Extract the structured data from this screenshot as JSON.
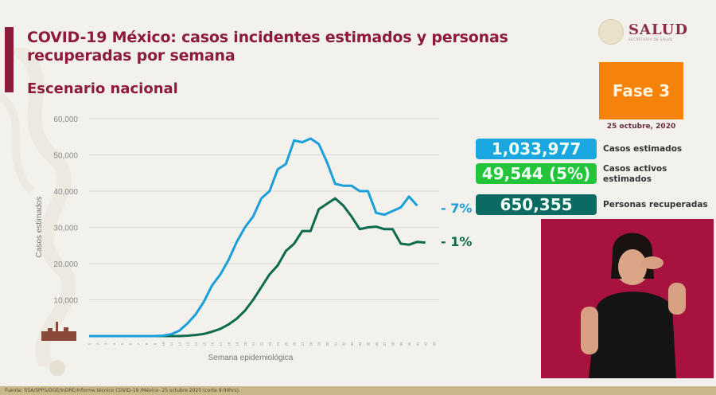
{
  "header": {
    "title": "COVID-19 México: casos incidentes estimados y personas recuperadas por semana",
    "subtitle": "Escenario nacional",
    "logo": {
      "main": "SALUD",
      "sub": "SECRETARÍA DE SALUD",
      "icon": "national-seal-icon"
    }
  },
  "phase": {
    "label": "Fase 3",
    "date": "25 octubre, 2020",
    "color": "#f5820a"
  },
  "stats": [
    {
      "value": "1,033,977",
      "label": "Casos estimados",
      "color": "#1aa7e0"
    },
    {
      "value": "49,544 (5%)",
      "label": "Casos activos estimados",
      "color": "#22c43a"
    },
    {
      "value": "650,355",
      "label": "Personas recuperadas",
      "color": "#0b6b63"
    }
  ],
  "annotations": {
    "estimated_change": "- 7%",
    "recovered_change": "- 1%"
  },
  "footer": {
    "source": "Fuente: SSA/SPPS/DGE/InDRE/Informe técnico COVID-19 /México- 25 octubre 2020 (corte 9:00hrs)."
  },
  "chart_data": {
    "type": "line",
    "title": "COVID-19 México: casos incidentes estimados y personas recuperadas por semana",
    "xlabel": "Semana epidemiológica",
    "ylabel": "Casos estimados",
    "ylim": [
      0,
      60000
    ],
    "yticks": [
      "0",
      "10,000",
      "20,000",
      "30,000",
      "40,000",
      "50,000",
      "60,000"
    ],
    "grid": true,
    "x": [
      1,
      2,
      3,
      4,
      5,
      6,
      7,
      8,
      9,
      10,
      11,
      12,
      13,
      14,
      15,
      16,
      17,
      18,
      19,
      20,
      21,
      22,
      23,
      24,
      25,
      26,
      27,
      28,
      29,
      30,
      31,
      32,
      33,
      34,
      35,
      36,
      37,
      38,
      39,
      40,
      41,
      42,
      43
    ],
    "series": [
      {
        "name": "Casos estimados",
        "color": "#1a9fd8",
        "values": [
          0,
          0,
          0,
          0,
          0,
          0,
          0,
          0,
          0,
          100,
          500,
          1500,
          3500,
          6000,
          9500,
          14000,
          17000,
          21000,
          26000,
          30000,
          33000,
          38000,
          40000,
          46000,
          47500,
          54000,
          53500,
          54500,
          53000,
          48000,
          42000,
          41500,
          41500,
          40000,
          40000,
          34000,
          33500,
          34500,
          35500,
          38500,
          36000,
          null,
          null
        ]
      },
      {
        "name": "Personas recuperadas",
        "color": "#0c6a4e",
        "values": [
          0,
          0,
          0,
          0,
          0,
          0,
          0,
          0,
          0,
          0,
          0,
          0,
          100,
          300,
          600,
          1200,
          2000,
          3200,
          4800,
          7000,
          10000,
          13500,
          17000,
          19500,
          23500,
          25500,
          29000,
          29000,
          35000,
          36500,
          38000,
          36000,
          33000,
          29500,
          30000,
          30200,
          29500,
          29500,
          25500,
          25200,
          26000,
          25800,
          null
        ]
      }
    ],
    "annotations": [
      "- 7%",
      "- 1%"
    ]
  },
  "interpreter_panel": {
    "description": "sign-language-interpreter-video"
  }
}
